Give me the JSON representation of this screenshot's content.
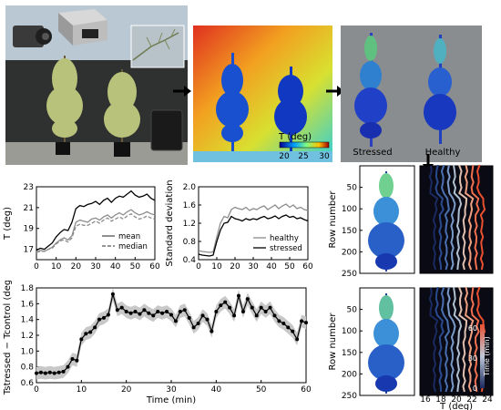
{
  "colors": {
    "wall": "#2f3030",
    "sky": "#b9c8d3",
    "foliage": "#b9c27a",
    "thermal_bg": "#e9b32a",
    "seg_bg": "#8a8d8f",
    "stressed": "#000000",
    "healthy": "#8c8c8c",
    "band": "#c8c8c8"
  },
  "photo": {
    "icons": [
      "camera-icon",
      "thermal-camera-icon",
      "branch-inset"
    ]
  },
  "thermal_image": {
    "colorbar_title": "T (deg)",
    "colorbar_ticks": [
      "20",
      "25",
      "30"
    ]
  },
  "segmented_image": {
    "label_stressed": "Stressed",
    "label_healthy": "Healthy"
  },
  "arrows": [
    "arrow-right-1",
    "arrow-right-2",
    "arrow-down"
  ],
  "chart_data": [
    {
      "id": "temperature",
      "type": "line",
      "ylabel": "T (deg)",
      "xlim": [
        0,
        60
      ],
      "ylim": [
        16,
        23
      ],
      "yticks": [
        "17",
        "19",
        "21",
        "23"
      ],
      "xticks": [
        "0",
        "10",
        "20",
        "30",
        "40",
        "50",
        "60"
      ],
      "legend_position": "bottom-right",
      "x": [
        0,
        2,
        4,
        6,
        8,
        10,
        12,
        14,
        16,
        18,
        20,
        22,
        24,
        26,
        28,
        30,
        32,
        34,
        36,
        38,
        40,
        42,
        44,
        46,
        48,
        50,
        52,
        54,
        56,
        58,
        60
      ],
      "series": [
        {
          "name": "mean",
          "style": "solid",
          "traces": [
            {
              "color": "#000000",
              "values": [
                16.9,
                17.1,
                17.0,
                17.3,
                17.6,
                18.2,
                18.6,
                18.9,
                18.8,
                19.6,
                20.9,
                21.2,
                21.1,
                21.3,
                21.4,
                21.6,
                21.3,
                21.7,
                21.9,
                21.5,
                21.9,
                22.1,
                22.0,
                22.3,
                22.6,
                22.2,
                22.0,
                22.1,
                22.3,
                21.9,
                21.7
              ]
            },
            {
              "color": "#8c8c8c",
              "values": [
                16.7,
                16.9,
                16.8,
                17.0,
                17.2,
                17.6,
                17.9,
                18.1,
                17.9,
                18.3,
                19.6,
                19.8,
                19.7,
                19.6,
                19.9,
                20.0,
                19.8,
                20.1,
                20.3,
                20.0,
                20.3,
                20.5,
                20.3,
                20.6,
                20.8,
                20.5,
                20.3,
                20.4,
                20.6,
                20.4,
                20.3
              ]
            }
          ]
        },
        {
          "name": "median",
          "style": "dashed",
          "traces": [
            {
              "color": "#8c8c8c",
              "values": [
                16.7,
                16.8,
                16.8,
                17.0,
                17.1,
                17.5,
                17.8,
                17.9,
                17.7,
                18.1,
                19.2,
                19.4,
                19.3,
                19.3,
                19.5,
                19.7,
                19.5,
                19.8,
                20.0,
                19.7,
                19.9,
                20.1,
                19.9,
                20.2,
                20.4,
                20.1,
                19.9,
                20.0,
                20.2,
                20.0,
                19.9
              ]
            }
          ]
        }
      ]
    },
    {
      "id": "std",
      "type": "line",
      "ylabel": "Standard deviation",
      "xlim": [
        0,
        60
      ],
      "ylim": [
        0.4,
        2.0
      ],
      "yticks": [
        "0.4",
        "0.8",
        "1.2",
        "1.6",
        "2.0"
      ],
      "xticks": [
        "0",
        "10",
        "20",
        "30",
        "40",
        "50",
        "60"
      ],
      "legend_position": "bottom-right",
      "x": [
        0,
        2,
        4,
        6,
        8,
        10,
        12,
        14,
        16,
        18,
        20,
        22,
        24,
        26,
        28,
        30,
        32,
        34,
        36,
        38,
        40,
        42,
        44,
        46,
        48,
        50,
        52,
        54,
        56,
        58,
        60
      ],
      "series": [
        {
          "name": "healthy",
          "color": "#8c8c8c",
          "values": [
            0.6,
            0.58,
            0.57,
            0.56,
            0.57,
            0.9,
            1.2,
            1.35,
            1.32,
            1.5,
            1.55,
            1.52,
            1.5,
            1.55,
            1.48,
            1.52,
            1.5,
            1.55,
            1.58,
            1.5,
            1.55,
            1.6,
            1.52,
            1.58,
            1.62,
            1.55,
            1.6,
            1.52,
            1.55,
            1.5,
            1.48
          ]
        },
        {
          "name": "stressed",
          "color": "#000000",
          "values": [
            0.52,
            0.5,
            0.49,
            0.48,
            0.5,
            0.8,
            1.05,
            1.2,
            1.22,
            1.35,
            1.3,
            1.28,
            1.25,
            1.3,
            1.27,
            1.3,
            1.28,
            1.32,
            1.35,
            1.3,
            1.32,
            1.36,
            1.3,
            1.35,
            1.38,
            1.33,
            1.35,
            1.3,
            1.32,
            1.28,
            1.25
          ]
        }
      ]
    },
    {
      "id": "difference",
      "type": "line",
      "ylabel": "Tstressed − Tcontrol (deg)",
      "xlabel": "Time (min)",
      "xlim": [
        0,
        60
      ],
      "ylim": [
        0.6,
        1.8
      ],
      "yticks": [
        "0.6",
        "0.8",
        "1.0",
        "1.2",
        "1.4",
        "1.6",
        "1.8"
      ],
      "xticks": [
        "0",
        "10",
        "20",
        "30",
        "40",
        "50",
        "60"
      ],
      "x": [
        0,
        1,
        2,
        3,
        4,
        5,
        6,
        7,
        8,
        9,
        10,
        11,
        12,
        13,
        14,
        15,
        16,
        17,
        18,
        19,
        20,
        21,
        22,
        23,
        24,
        25,
        26,
        27,
        28,
        29,
        30,
        31,
        32,
        33,
        34,
        35,
        36,
        37,
        38,
        39,
        40,
        41,
        42,
        43,
        44,
        45,
        46,
        47,
        48,
        49,
        50,
        51,
        52,
        53,
        54,
        55,
        56,
        57,
        58,
        59,
        60
      ],
      "series": [
        {
          "name": "difference",
          "color": "#000000",
          "band": 0.08,
          "values": [
            0.72,
            0.73,
            0.72,
            0.73,
            0.72,
            0.73,
            0.74,
            0.8,
            0.9,
            0.88,
            1.15,
            1.22,
            1.24,
            1.3,
            1.4,
            1.42,
            1.46,
            1.72,
            1.52,
            1.55,
            1.5,
            1.48,
            1.5,
            1.47,
            1.52,
            1.48,
            1.45,
            1.5,
            1.48,
            1.5,
            1.46,
            1.38,
            1.5,
            1.52,
            1.42,
            1.3,
            1.35,
            1.45,
            1.4,
            1.25,
            1.5,
            1.58,
            1.62,
            1.55,
            1.45,
            1.7,
            1.5,
            1.66,
            1.55,
            1.45,
            1.55,
            1.5,
            1.55,
            1.45,
            1.38,
            1.35,
            1.3,
            1.25,
            1.15,
            1.38,
            1.36
          ]
        }
      ]
    },
    {
      "id": "profile-top",
      "type": "heatmap",
      "ylabel": "Row number",
      "ylim": [
        0,
        250
      ],
      "yticks": [
        "50",
        "100",
        "150",
        "200",
        "250"
      ]
    },
    {
      "id": "profile-bottom",
      "type": "heatmap",
      "ylabel": "Row number",
      "ylim": [
        0,
        250
      ],
      "yticks": [
        "50",
        "100",
        "150",
        "200",
        "250"
      ]
    },
    {
      "id": "row-profiles",
      "type": "line",
      "xlabel": "T (deg)",
      "xticks": [
        "16",
        "18",
        "20",
        "22",
        "24"
      ],
      "colorbar_label": "Time (min)",
      "colorbar_ticks": [
        "0",
        "30",
        "60"
      ]
    }
  ]
}
